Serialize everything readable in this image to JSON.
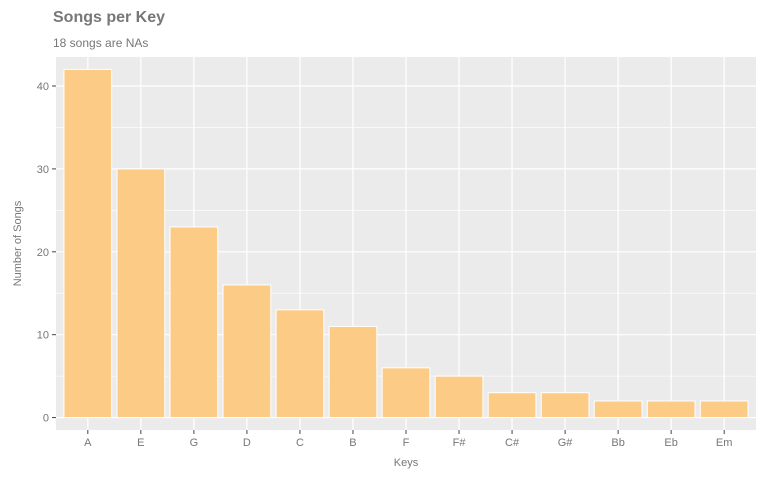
{
  "chart_data": {
    "type": "bar",
    "title": "Songs per Key",
    "subtitle": "18 songs are NAs",
    "xlabel": "Keys",
    "ylabel": "Number of Songs",
    "categories": [
      "A",
      "E",
      "G",
      "D",
      "C",
      "B",
      "F",
      "F#",
      "C#",
      "G#",
      "Bb",
      "Eb",
      "Em"
    ],
    "values": [
      42,
      30,
      23,
      16,
      13,
      11,
      6,
      5,
      3,
      3,
      2,
      2,
      2
    ],
    "ylim": [
      -1.5,
      43.5
    ],
    "yticks": [
      0,
      10,
      20,
      30,
      40
    ],
    "grid": true,
    "legend": "none",
    "colors": {
      "bar_fill": "#fccb86",
      "bar_stroke": "#ffffff",
      "panel": "#ebebeb",
      "grid": "#ffffff",
      "text": "#777777"
    }
  }
}
